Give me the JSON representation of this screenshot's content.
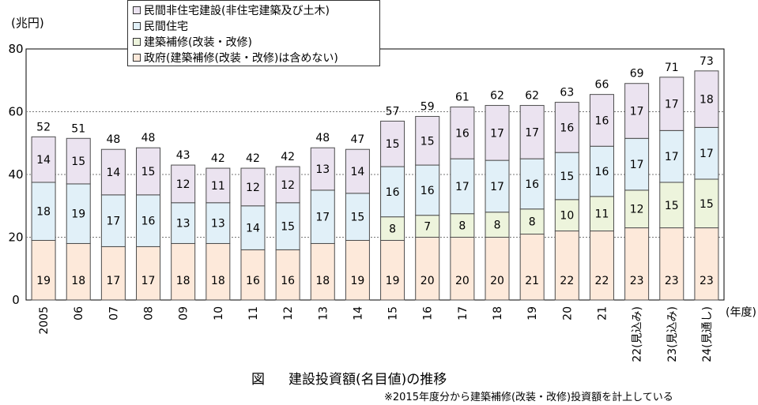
{
  "unit": "(兆円)",
  "legend": {
    "items": [
      {
        "label": "民間非住宅建設(非住宅建築及び土木)",
        "color": "#ebe3f0"
      },
      {
        "label": "民間住宅",
        "color": "#e1f0f8"
      },
      {
        "label": "建築補修(改装・改修)",
        "color": "#edf4dc"
      },
      {
        "label": "政府(建築補修(改装・改修)は含めない)",
        "color": "#fde9da"
      }
    ]
  },
  "caption": {
    "prefix": "図",
    "title": "建設投資額(名目値)の推移"
  },
  "note": "※2015年度分から建築補修(改装・改修)投資額を計上している",
  "chart_data": {
    "type": "stacked-bar",
    "title": "建設投資額(名目値)の推移",
    "ylabel": "(兆円)",
    "xlabel": "(年度)",
    "ylim": [
      0,
      80
    ],
    "yticks": [
      0,
      20,
      40,
      60,
      80
    ],
    "categories": [
      "2005",
      "06",
      "07",
      "08",
      "09",
      "10",
      "11",
      "12",
      "13",
      "14",
      "15",
      "16",
      "17",
      "18",
      "19",
      "20",
      "21",
      "22(見込み)",
      "23(見込み)",
      "24(見通し)"
    ],
    "series": [
      {
        "name": "政府(建築補修(改装・改修)は含めない)",
        "color": "#fde9da",
        "values": [
          19,
          18,
          17,
          17,
          18,
          18,
          16,
          16,
          18,
          19,
          19,
          20,
          20,
          20,
          21,
          22,
          22,
          23,
          23,
          23
        ],
        "labels": [
          "19",
          "18",
          "17",
          "17",
          "18",
          "18",
          "16",
          "16",
          "18",
          "19",
          "19",
          "20",
          "20",
          "20",
          "21",
          "22",
          "22",
          "23",
          "23",
          "23"
        ]
      },
      {
        "name": "建築補修(改装・改修)",
        "color": "#edf4dc",
        "values": [
          0,
          0,
          0,
          0,
          0,
          0,
          0,
          0,
          0,
          0,
          7.5,
          7,
          7.5,
          8,
          8,
          10,
          11,
          12,
          14.5,
          15.5
        ],
        "labels": [
          "",
          "",
          "",
          "",
          "",
          "",
          "",
          "",
          "",
          "",
          "8",
          "7",
          "8",
          "8",
          "8",
          "10",
          "11",
          "12",
          "15",
          "15"
        ]
      },
      {
        "name": "民間住宅",
        "color": "#e1f0f8",
        "values": [
          18.5,
          19,
          16.5,
          16.5,
          13,
          13,
          14,
          15,
          17,
          15,
          16,
          16,
          17.5,
          16.5,
          16,
          15,
          16,
          16.5,
          16.5,
          16.5
        ],
        "labels": [
          "18",
          "19",
          "17",
          "16",
          "13",
          "13",
          "14",
          "15",
          "17",
          "15",
          "16",
          "16",
          "17",
          "17",
          "16",
          "15",
          "16",
          "17",
          "17",
          "17"
        ]
      },
      {
        "name": "民間非住宅建設(非住宅建築及び土木)",
        "color": "#ebe3f0",
        "values": [
          14.5,
          14.5,
          14.5,
          15,
          12,
          11,
          12,
          11.5,
          13.5,
          14,
          14.5,
          15.5,
          16.5,
          17.5,
          17,
          16,
          16.5,
          17.5,
          17,
          18
        ],
        "labels": [
          "14",
          "15",
          "14",
          "15",
          "12",
          "11",
          "12",
          "12",
          "13",
          "14",
          "15",
          "15",
          "16",
          "17",
          "17",
          "16",
          "16",
          "17",
          "17",
          "18"
        ]
      }
    ],
    "totals": [
      "52",
      "51",
      "48",
      "48",
      "43",
      "42",
      "42",
      "42",
      "48",
      "47",
      "57",
      "59",
      "61",
      "62",
      "62",
      "63",
      "66",
      "69",
      "71",
      "73"
    ],
    "grid": true,
    "legend_position": "top-left"
  }
}
